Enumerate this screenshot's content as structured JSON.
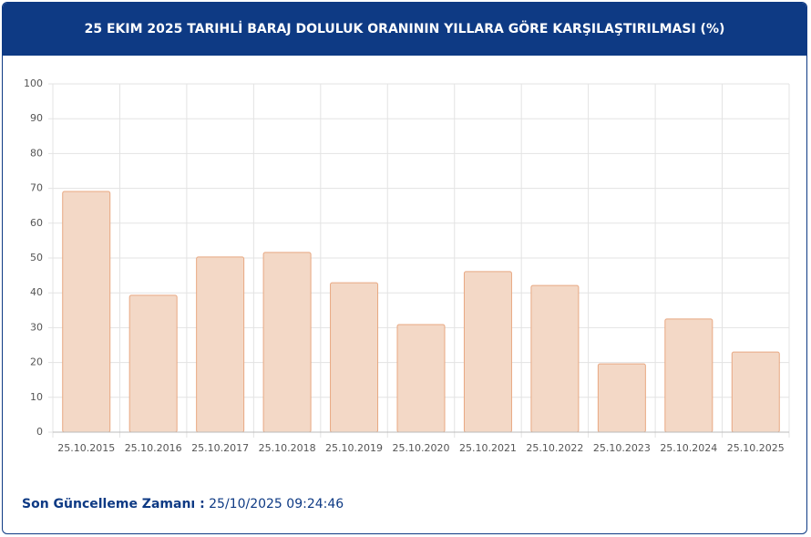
{
  "chart_data": {
    "type": "bar",
    "title": "25 EKIM 2025 TARIHLİ BARAJ DOLULUK ORANININ YILLARA GÖRE KARŞILAŞTIRILMASI (%)",
    "categories": [
      "25.10.2015",
      "25.10.2016",
      "25.10.2017",
      "25.10.2018",
      "25.10.2019",
      "25.10.2020",
      "25.10.2021",
      "25.10.2022",
      "25.10.2023",
      "25.10.2024",
      "25.10.2025"
    ],
    "values": [
      69.1,
      39.3,
      50.3,
      51.6,
      42.9,
      30.9,
      46.1,
      42.1,
      19.6,
      32.5,
      23.0
    ],
    "color": "#f3d8c6",
    "ylim": [
      0,
      100
    ],
    "yticks": [
      0,
      10,
      20,
      30,
      40,
      50,
      60,
      70,
      80,
      90,
      100
    ],
    "grid": true
  },
  "footer": {
    "label": "Son Güncelleme Zamanı :",
    "value": "25/10/2025 09:24:46"
  }
}
